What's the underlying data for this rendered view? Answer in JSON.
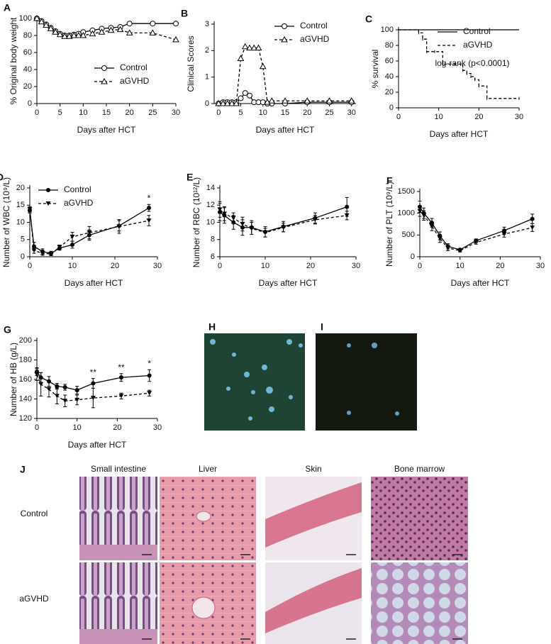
{
  "chart_data": [
    {
      "panel": "A",
      "type": "line",
      "ylabel": "% Original body weight",
      "xlabel": "Days after HCT",
      "xlim": [
        0,
        30
      ],
      "xticks": [
        0,
        5,
        10,
        15,
        20,
        25,
        30
      ],
      "ylim": [
        0,
        100
      ],
      "yticks": [
        0,
        20,
        40,
        60,
        80,
        100
      ],
      "legend": "lower right",
      "x": [
        0,
        1,
        2,
        3,
        4,
        5,
        6,
        7,
        8,
        9,
        10,
        12,
        14,
        16,
        18,
        20,
        25,
        30
      ],
      "series": [
        {
          "name": "Control",
          "color": "#000000",
          "marker": "circle-open",
          "dash": false,
          "values": [
            100,
            97,
            93,
            89,
            85,
            82,
            80,
            80,
            81,
            82,
            84,
            86,
            88,
            89,
            90,
            94,
            94,
            94
          ]
        },
        {
          "name": "aGVHD",
          "color": "#000000",
          "marker": "triangle-open",
          "dash": true,
          "values": [
            100,
            96,
            92,
            88,
            84,
            81,
            79,
            79,
            80,
            80,
            80,
            82,
            84,
            86,
            87,
            83,
            83,
            75
          ]
        }
      ]
    },
    {
      "panel": "B",
      "type": "line",
      "ylabel": "Clinical Scores",
      "xlabel": "Days after HCT",
      "xlim": [
        -1,
        31
      ],
      "xticks": [
        0,
        5,
        10,
        15,
        20,
        25,
        30
      ],
      "ylim": [
        0,
        3
      ],
      "yticks": [
        0,
        1,
        2,
        3
      ],
      "legend": "upper right",
      "x": [
        0,
        1,
        2,
        3,
        4,
        5,
        6,
        7,
        8,
        9,
        10,
        11,
        12,
        15,
        20,
        25,
        30
      ],
      "series": [
        {
          "name": "Control",
          "color": "#000000",
          "marker": "circle-open",
          "dash": false,
          "values": [
            0,
            0.05,
            0.05,
            0.05,
            0.05,
            0.2,
            0.4,
            0.3,
            0.05,
            0.05,
            0.05,
            0,
            0,
            0,
            0.05,
            0.05,
            0.05
          ]
        },
        {
          "name": "aGVHD",
          "color": "#000000",
          "marker": "triangle-open",
          "dash": true,
          "values": [
            0,
            0,
            0,
            0,
            0,
            1.7,
            2.15,
            2.1,
            2.1,
            2.1,
            1.4,
            0.05,
            0.1,
            0.1,
            0.1,
            0.1,
            0.1
          ]
        }
      ]
    },
    {
      "panel": "C",
      "type": "step",
      "ylabel": "% survival",
      "xlabel": "Days after HCT",
      "xlim": [
        0,
        30
      ],
      "xticks": [
        0,
        10,
        20,
        30
      ],
      "ylim": [
        0,
        100
      ],
      "yticks": [
        0,
        20,
        40,
        60,
        80,
        100
      ],
      "legend": "upper right",
      "annotation": "log-rank (p<0.0001)",
      "x": [
        0,
        5,
        6,
        7,
        9,
        11,
        14,
        16,
        17,
        18,
        19,
        20,
        22,
        30
      ],
      "series": [
        {
          "name": "Control",
          "color": "#000000",
          "marker": "none",
          "dash": false,
          "values": [
            100,
            100,
            100,
            100,
            100,
            100,
            100,
            100,
            100,
            100,
            100,
            100,
            100,
            100
          ]
        },
        {
          "name": "aGVHD",
          "color": "#000000",
          "marker": "none",
          "dash": true,
          "values": [
            100,
            96,
            88,
            72,
            72,
            56,
            56,
            48,
            44,
            40,
            36,
            28,
            12,
            12
          ]
        }
      ]
    },
    {
      "panel": "D",
      "type": "line",
      "ylabel": "Number of WBC (10⁹/L)",
      "xlabel": "Days after HCT",
      "xlim": [
        0,
        30
      ],
      "xticks": [
        0,
        10,
        20,
        30
      ],
      "ylim": [
        0,
        20
      ],
      "yticks": [
        0,
        5,
        10,
        15,
        20
      ],
      "legend": "upper left",
      "x": [
        0,
        1,
        3,
        5,
        7,
        10,
        14,
        21,
        28
      ],
      "annotations": [
        {
          "text": "*",
          "x": 28
        }
      ],
      "series": [
        {
          "name": "Control",
          "color": "#000000",
          "marker": "circle",
          "dash": false,
          "values": [
            13.5,
            3,
            1.5,
            1,
            2.5,
            3.5,
            6.3,
            9,
            14.2
          ],
          "errors": [
            0.8,
            1.2,
            0.8,
            0.6,
            0.6,
            1,
            1.5,
            1.5,
            1
          ]
        },
        {
          "name": "aGVHD",
          "color": "#000000",
          "marker": "triangle-down",
          "dash": true,
          "values": [
            13.8,
            1.8,
            1,
            0.8,
            2.8,
            5.8,
            7,
            8.8,
            10.5
          ],
          "errors": [
            0.8,
            0.8,
            0.6,
            0.5,
            0.6,
            1.3,
            1.8,
            2,
            1.5
          ]
        }
      ]
    },
    {
      "panel": "E",
      "type": "line",
      "ylabel": "Number of RBC (10¹²/L)",
      "xlabel": "Days after HCT",
      "xlim": [
        0,
        30
      ],
      "xticks": [
        0,
        10,
        20,
        30
      ],
      "ylim": [
        6,
        14
      ],
      "yticks": [
        6,
        8,
        10,
        12,
        14
      ],
      "x": [
        0,
        1,
        3,
        5,
        7,
        10,
        14,
        21,
        28
      ],
      "series": [
        {
          "name": "Control",
          "color": "#000000",
          "marker": "circle",
          "dash": false,
          "values": [
            11.2,
            10.8,
            10,
            9.4,
            9.4,
            8.9,
            9.5,
            10.5,
            11.8
          ],
          "errors": [
            1,
            0.9,
            0.8,
            0.9,
            0.8,
            0.6,
            0.6,
            0.6,
            1.1
          ]
        },
        {
          "name": "aGVHD",
          "color": "#000000",
          "marker": "triangle-down",
          "dash": true,
          "values": [
            11.5,
            11,
            10.5,
            9.8,
            9.3,
            8.8,
            9.4,
            10.3,
            10.8
          ],
          "errors": [
            0.9,
            0.8,
            0.6,
            0.8,
            0.7,
            0.5,
            0.5,
            0.5,
            0.5
          ]
        }
      ]
    },
    {
      "panel": "F",
      "type": "line",
      "ylabel": "Number of PLT (10⁹/L)",
      "xlabel": "Days after HCT",
      "xlim": [
        0,
        30
      ],
      "xticks": [
        0,
        10,
        20,
        30
      ],
      "ylim": [
        0,
        1500
      ],
      "yticks": [
        0,
        500,
        1000,
        1500
      ],
      "x": [
        0,
        1,
        3,
        5,
        7,
        10,
        14,
        21,
        28
      ],
      "series": [
        {
          "name": "Control",
          "color": "#000000",
          "marker": "circle",
          "dash": false,
          "values": [
            1150,
            1000,
            780,
            480,
            240,
            160,
            370,
            600,
            870
          ],
          "errors": [
            130,
            120,
            100,
            90,
            60,
            30,
            40,
            80,
            110
          ]
        },
        {
          "name": "aGVHD",
          "color": "#000000",
          "marker": "triangle-down",
          "dash": true,
          "values": [
            1050,
            950,
            700,
            420,
            200,
            140,
            330,
            520,
            670
          ],
          "errors": [
            120,
            110,
            100,
            90,
            60,
            30,
            40,
            70,
            90
          ]
        }
      ]
    },
    {
      "panel": "G",
      "type": "line",
      "ylabel": "Number of HB (g/L)",
      "xlabel": "Days after HCT",
      "xlim": [
        0,
        30
      ],
      "xticks": [
        0,
        10,
        20,
        30
      ],
      "ylim": [
        120,
        200
      ],
      "yticks": [
        120,
        140,
        160,
        180,
        200
      ],
      "x": [
        0,
        1,
        3,
        5,
        7,
        10,
        14,
        21,
        28
      ],
      "annotations": [
        {
          "text": "**",
          "x": 14
        },
        {
          "text": "**",
          "x": 21
        },
        {
          "text": "*",
          "x": 28
        }
      ],
      "series": [
        {
          "name": "Control",
          "color": "#000000",
          "marker": "circle",
          "dash": false,
          "values": [
            168,
            162,
            158,
            153,
            152,
            149,
            156,
            162,
            164
          ],
          "errors": [
            4,
            5,
            5,
            3,
            3,
            4,
            5,
            4,
            6
          ]
        },
        {
          "name": "aGVHD",
          "color": "#000000",
          "marker": "triangle-down",
          "dash": true,
          "values": [
            165,
            155,
            150,
            143,
            138,
            139,
            141,
            143,
            146
          ],
          "errors": [
            6,
            12,
            8,
            8,
            6,
            5,
            10,
            3,
            3
          ]
        }
      ]
    }
  ],
  "images": {
    "H": "H",
    "I": "I",
    "J": {
      "label": "J",
      "columns": [
        "Small intestine",
        "Liver",
        "Skin",
        "Bone marrow"
      ],
      "rows": [
        "Control",
        "aGVHD"
      ]
    }
  }
}
